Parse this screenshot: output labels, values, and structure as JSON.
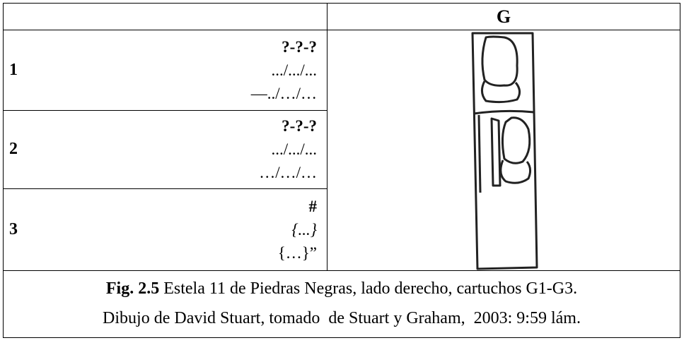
{
  "table": {
    "header": "G",
    "rows": [
      {
        "number": "1",
        "lines": [
          "?-?-?",
          ".../.../...",
          "—../…/…"
        ]
      },
      {
        "number": "2",
        "lines": [
          "?-?-?",
          ".../.../...",
          "…/…/…"
        ]
      },
      {
        "number": "3",
        "lines": [
          "#",
          "{...}",
          "{…}”"
        ]
      }
    ]
  },
  "caption": {
    "label": "Fig. 2.5",
    "text": "Estela 11 de Piedras Negras, lado derecho, cartuchos G1-G3.",
    "line2": "Dibujo de David Stuart, tomado  de Stuart y Graham,  2003: 9:59 lám."
  }
}
